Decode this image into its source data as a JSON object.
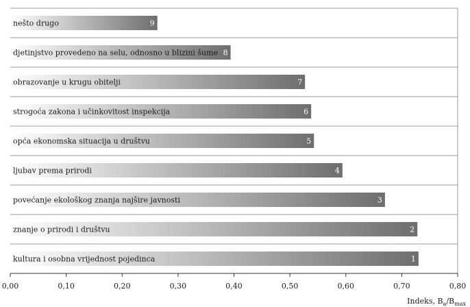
{
  "chart_data": {
    "type": "bar",
    "orientation": "horizontal",
    "categories": [
      "nešto drugo",
      "djetinjstvo provedeno na selu, odnosno u blizini šume",
      "obrazovanje u krugu obitelji",
      "strogoća zakona i učinkovitost inspekcija",
      "opća ekonomska situacija u društvu",
      "ljubav prema prirodi",
      "povećanje ekološkog znanja najšire javnosti",
      "znanje o prirodi i društvu",
      "kultura i osobna vrijednost pojedinca"
    ],
    "values": [
      0.263,
      0.394,
      0.527,
      0.538,
      0.543,
      0.594,
      0.67,
      0.728,
      0.73
    ],
    "ranks": [
      "9",
      "8",
      "7",
      "6",
      "5",
      "4",
      "3",
      "2",
      "1"
    ],
    "xlim": [
      0,
      0.8
    ],
    "xticks": [
      "0,00",
      "0,10",
      "0,20",
      "0,30",
      "0,40",
      "0,50",
      "0,60",
      "0,70",
      "0,80"
    ],
    "xlabel_prefix": "Indeks, B",
    "xlabel_sub1": "a",
    "xlabel_mid": "/B",
    "xlabel_sub2": "max",
    "grid": "horizontal",
    "colors": {
      "bar_light": "#ffffff",
      "bar_dark": "#6e6e6e",
      "grid": "#9a9a9a",
      "axis": "#333333"
    }
  }
}
